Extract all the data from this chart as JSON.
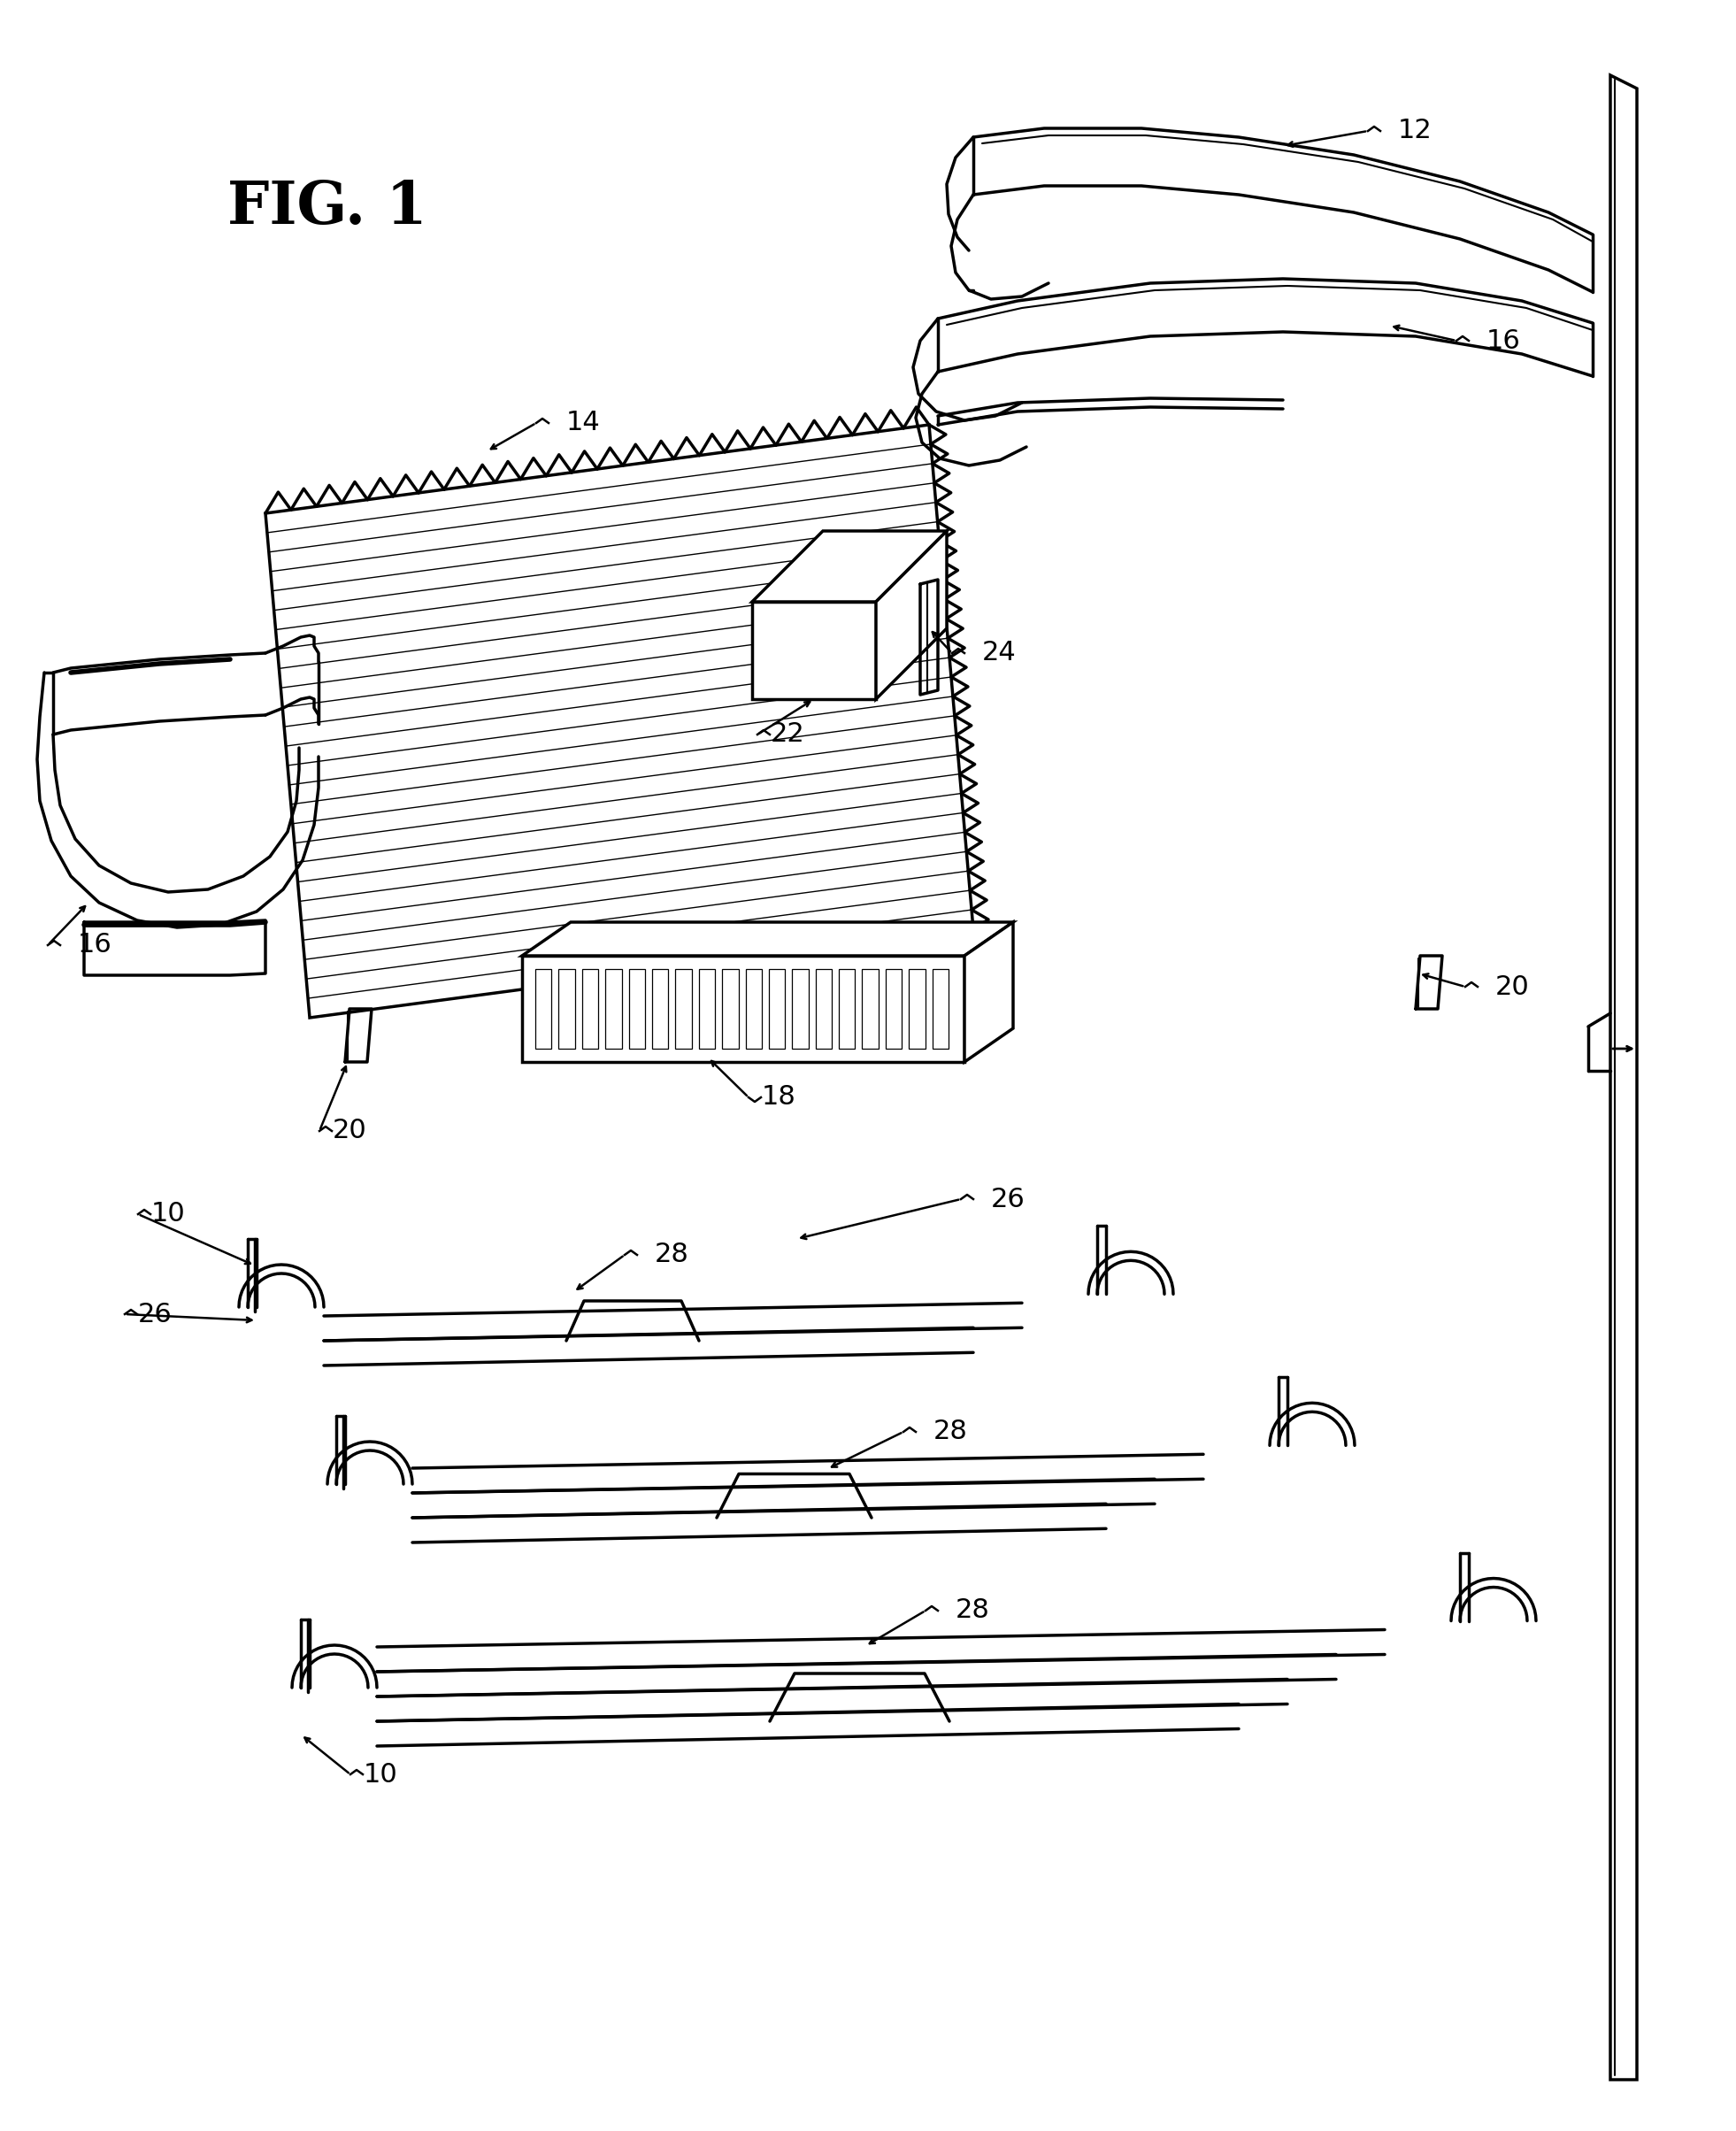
{
  "background_color": "#ffffff",
  "line_color": "#000000",
  "title": "FIG. 1",
  "title_fontsize": 48,
  "label_fontsize": 22,
  "lw_main": 2.5,
  "lw_thin": 1.5,
  "lw_thick": 4.0
}
